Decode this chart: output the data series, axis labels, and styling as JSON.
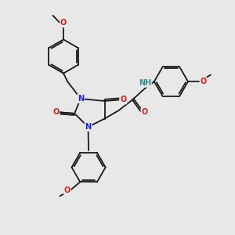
{
  "bg_color": "#e8e8e8",
  "bond_color": "#1a1a1a",
  "N_color": "#2020cc",
  "O_color": "#cc2020",
  "NH_color": "#3a8a8a",
  "font_size": 7.0,
  "bond_lw": 1.3,
  "dbl_sep": 0.07,
  "ring_r": 0.72,
  "figsize": [
    3.0,
    3.0
  ],
  "dpi": 100,
  "xlim": [
    0,
    10
  ],
  "ylim": [
    0,
    10
  ]
}
